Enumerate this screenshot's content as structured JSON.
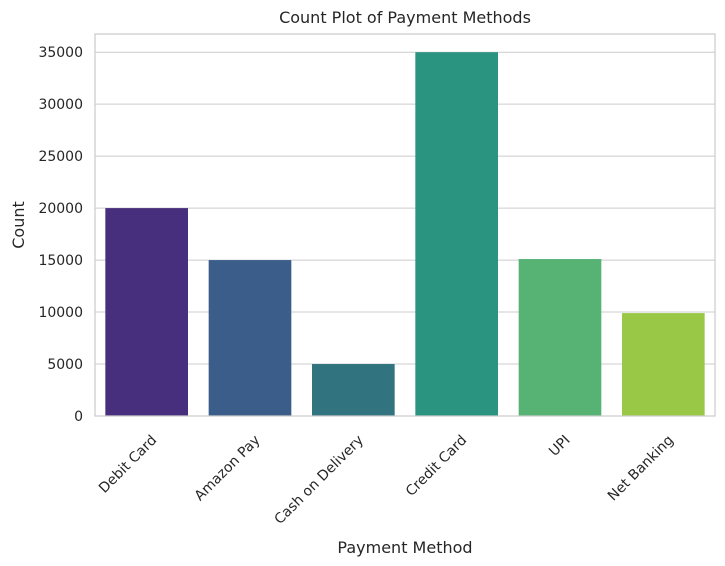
{
  "chart_data": {
    "type": "bar",
    "title": "Count Plot of Payment Methods",
    "xlabel": "Payment Method",
    "ylabel": "Count",
    "categories": [
      "Debit Card",
      "Amazon Pay",
      "Cash on Delivery",
      "Credit Card",
      "UPI",
      "Net Banking"
    ],
    "values": [
      20000,
      15000,
      5000,
      35000,
      15100,
      9900
    ],
    "colors": [
      "#472f7d",
      "#3b5d8a",
      "#31737f",
      "#2a9480",
      "#57b374",
      "#98c846"
    ],
    "yticks": [
      0,
      5000,
      10000,
      15000,
      20000,
      25000,
      30000,
      35000
    ],
    "ylim": [
      0,
      36750
    ],
    "grid": true,
    "legend": "none"
  }
}
